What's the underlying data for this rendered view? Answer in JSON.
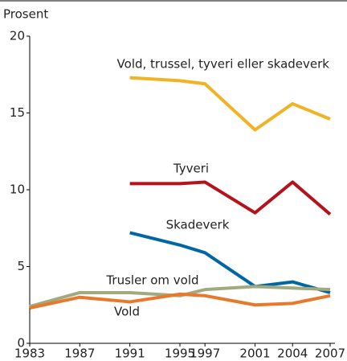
{
  "chart_data": {
    "type": "line",
    "y_label": "Prosent",
    "x": [
      1983,
      1987,
      1991,
      1995,
      1997,
      2001,
      2004,
      2007
    ],
    "xlim": [
      1983,
      2007
    ],
    "xticks": [
      1983,
      1987,
      1991,
      1995,
      1997,
      2001,
      2004,
      2007
    ],
    "ylim": [
      0,
      20
    ],
    "yticks": [
      0,
      5,
      10,
      15,
      20
    ],
    "grid": false,
    "series": [
      {
        "name": "Vold, trussel, tyveri eller skadeverk",
        "color": "#f0b323",
        "values": [
          null,
          null,
          17.3,
          17.1,
          16.9,
          13.9,
          15.6,
          14.6
        ]
      },
      {
        "name": "Tyveri",
        "color": "#b5121b",
        "values": [
          null,
          null,
          10.4,
          10.4,
          10.5,
          8.5,
          10.5,
          8.4
        ]
      },
      {
        "name": "Skadeverk",
        "color": "#0067a5",
        "values": [
          null,
          null,
          7.2,
          6.4,
          5.9,
          3.7,
          4.0,
          3.3
        ]
      },
      {
        "name": "Trusler om vold",
        "color": "#a3a97f",
        "values": [
          2.4,
          3.3,
          3.3,
          3.1,
          3.5,
          3.7,
          3.6,
          3.5
        ]
      },
      {
        "name": "Vold",
        "color": "#e8792b",
        "values": [
          2.3,
          3.0,
          2.7,
          3.2,
          3.1,
          2.5,
          2.6,
          3.1
        ]
      }
    ]
  }
}
